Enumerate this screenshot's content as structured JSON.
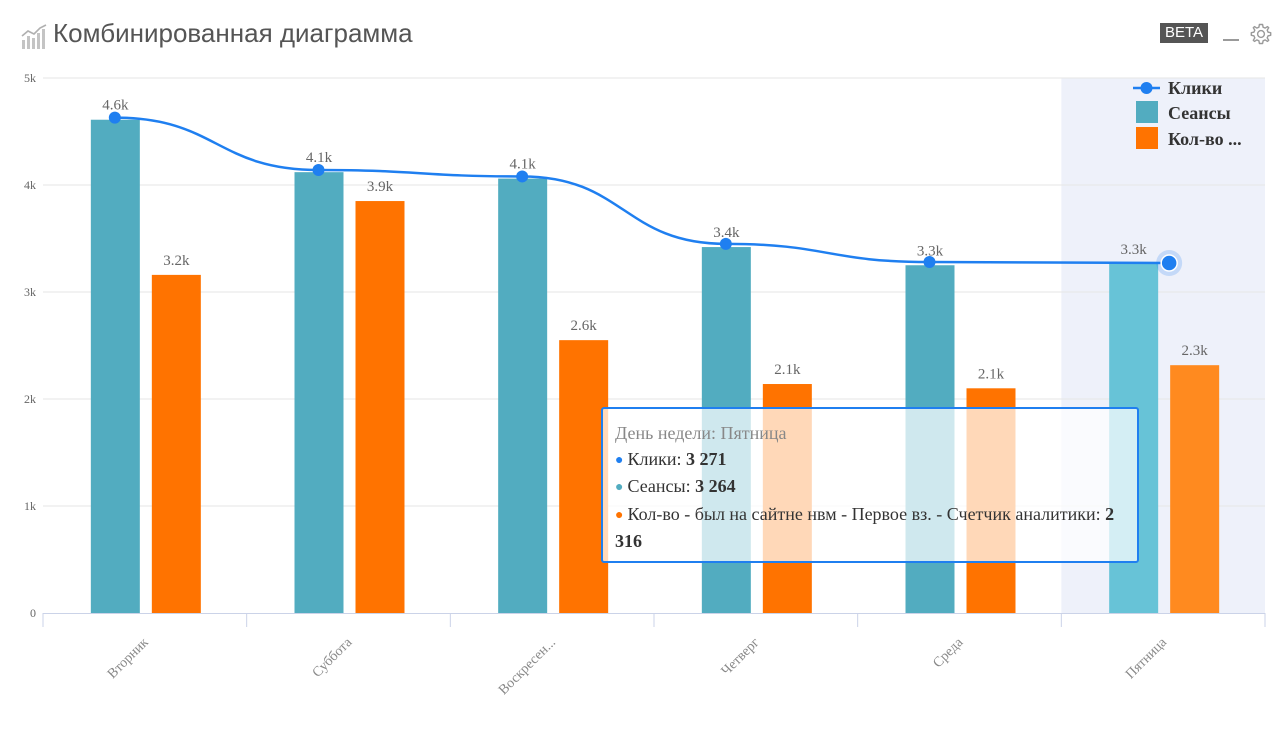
{
  "header": {
    "title": "Комбинированная диаграмма",
    "beta_label": "BETA",
    "icons": [
      "chart-icon",
      "minimize-icon",
      "gear-icon"
    ]
  },
  "colors": {
    "clicks": "#1f7ff0",
    "sessions": "#52acc0",
    "sessions_highlight": "#67c3d7",
    "count": "#ff7300",
    "count_highlight": "#ff8a1f",
    "grid": "#e6e6e6",
    "highlight_band": "#eef1fa",
    "axis_text": "#666666"
  },
  "tooltip": {
    "title": "День недели: Пятница",
    "rows": [
      {
        "label": "Клики: ",
        "value": "3 271",
        "color": "#1f7ff0"
      },
      {
        "label": "Сеансы: ",
        "value": "3 264",
        "color": "#52acc0"
      },
      {
        "label": "Кол-во - был на сайтне нвм - Первое вз. - Счетчик аналитики: ",
        "value": "2 316",
        "color": "#ff7300"
      }
    ]
  },
  "chart_data": {
    "type": "bar",
    "categories": [
      "Вторник",
      "Суббота",
      "Воскресен...",
      "Четверг",
      "Среда",
      "Пятница"
    ],
    "y_ticks": [
      "0",
      "1k",
      "2k",
      "3k",
      "4k",
      "5k"
    ],
    "ylim": [
      0,
      5000
    ],
    "grid": true,
    "legend_position": "top-right",
    "highlighted_category": "Пятница",
    "series": [
      {
        "name": "Клики",
        "kind": "line",
        "values": [
          4630,
          4140,
          4080,
          3450,
          3280,
          3271
        ],
        "data_labels": []
      },
      {
        "name": "Сеансы",
        "kind": "bar",
        "values": [
          4610,
          4120,
          4060,
          3420,
          3250,
          3264
        ],
        "data_labels": [
          "4.6k",
          "4.1k",
          "4.1k",
          "3.4k",
          "3.3k",
          "3.3k"
        ]
      },
      {
        "name": "Кол-во ...",
        "kind": "bar",
        "values": [
          3160,
          3850,
          2550,
          2140,
          2100,
          2316
        ],
        "data_labels": [
          "3.2k",
          "3.9k",
          "2.6k",
          "2.1k",
          "2.1k",
          "2.3k"
        ]
      }
    ]
  }
}
